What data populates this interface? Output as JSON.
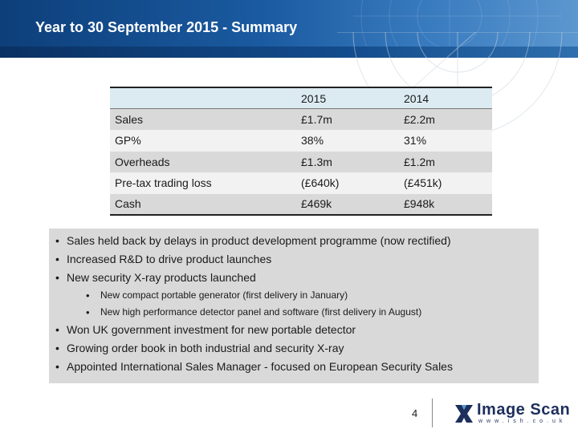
{
  "header": {
    "title": "Year to 30 September 2015 - Summary",
    "color": "#1a5aa0"
  },
  "table": {
    "columns": [
      "",
      "2015",
      "2014"
    ],
    "rows": [
      {
        "label": "Sales",
        "v2015": "£1.7m",
        "v2014": "£2.2m"
      },
      {
        "label": "GP%",
        "v2015": "38%",
        "v2014": "31%"
      },
      {
        "label": "Overheads",
        "v2015": "£1.3m",
        "v2014": "£1.2m"
      },
      {
        "label": "Pre-tax trading loss",
        "v2015": "(£640k)",
        "v2014": "(£451k)"
      },
      {
        "label": "Cash",
        "v2015": "£469k",
        "v2014": "£948k"
      }
    ],
    "header_color": "#dcebf2"
  },
  "bullets": {
    "items": [
      "Sales held back by delays in product development programme (now rectified)",
      "Increased R&D to drive product launches",
      "New security X-ray products launched"
    ],
    "sub_items": [
      "New compact portable generator (first delivery in January)",
      "New high performance detector panel and software (first delivery in August)"
    ],
    "items_after": [
      "Won UK government investment for new portable detector",
      "Growing order book in both industrial and security X-ray",
      "Appointed International Sales Manager - focused on European Security Sales"
    ]
  },
  "footer": {
    "page_number": "4",
    "logo_text": "Image Scan",
    "logo_url": "www.ish.co.uk",
    "logo_icon": "x-cross-logo-icon"
  }
}
